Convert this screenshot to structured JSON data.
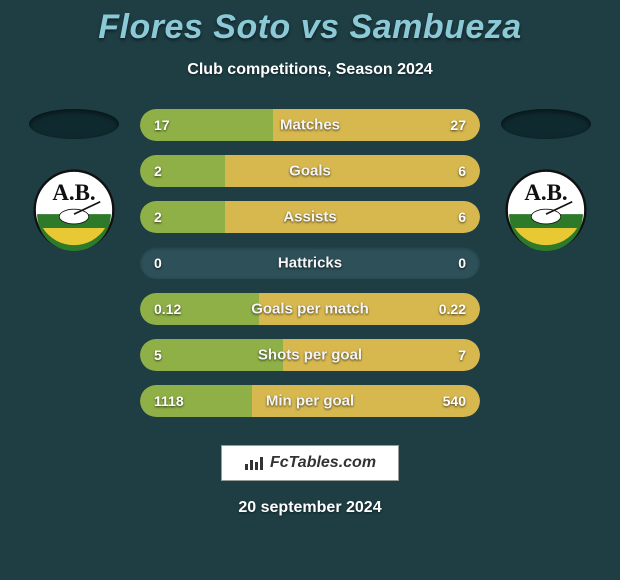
{
  "background_color": "#1e3e44",
  "title": {
    "text": "Flores Soto vs Sambueza",
    "color": "#8bc9d6",
    "fontsize": 34
  },
  "subtitle": {
    "text": "Club competitions, Season 2024",
    "color": "#ffffff",
    "fontsize": 16
  },
  "bar_track_color": "#2d5059",
  "bar_left_color": "#8fb046",
  "bar_right_color": "#d7b84e",
  "label_color": "#f5f5f5",
  "value_color": "#ffffff",
  "stats": [
    {
      "label": "Matches",
      "left_value": "17",
      "right_value": "27",
      "left_pct": 39,
      "right_pct": 61
    },
    {
      "label": "Goals",
      "left_value": "2",
      "right_value": "6",
      "left_pct": 25,
      "right_pct": 75
    },
    {
      "label": "Assists",
      "left_value": "2",
      "right_value": "6",
      "left_pct": 25,
      "right_pct": 75
    },
    {
      "label": "Hattricks",
      "left_value": "0",
      "right_value": "0",
      "left_pct": 0,
      "right_pct": 0
    },
    {
      "label": "Goals per match",
      "left_value": "0.12",
      "right_value": "0.22",
      "left_pct": 35,
      "right_pct": 65
    },
    {
      "label": "Shots per goal",
      "left_value": "5",
      "right_value": "7",
      "left_pct": 42,
      "right_pct": 58
    },
    {
      "label": "Min per goal",
      "left_value": "1118",
      "right_value": "540",
      "left_pct": 33,
      "right_pct": 67
    }
  ],
  "attribution": {
    "text": "FcTables.com",
    "background": "#ffffff",
    "border_color": "#999999",
    "text_color": "#333333"
  },
  "date": {
    "text": "20 september 2024",
    "color": "#ffffff",
    "fontsize": 16
  },
  "club_logo": {
    "top_text": "A.B.",
    "top_bg": "#ffffff",
    "bottom_top_color": "#2e7a2b",
    "bottom_bottom_color": "#e8c933",
    "border_color": "#111111"
  },
  "ellipse_color": "#0f2a2f"
}
